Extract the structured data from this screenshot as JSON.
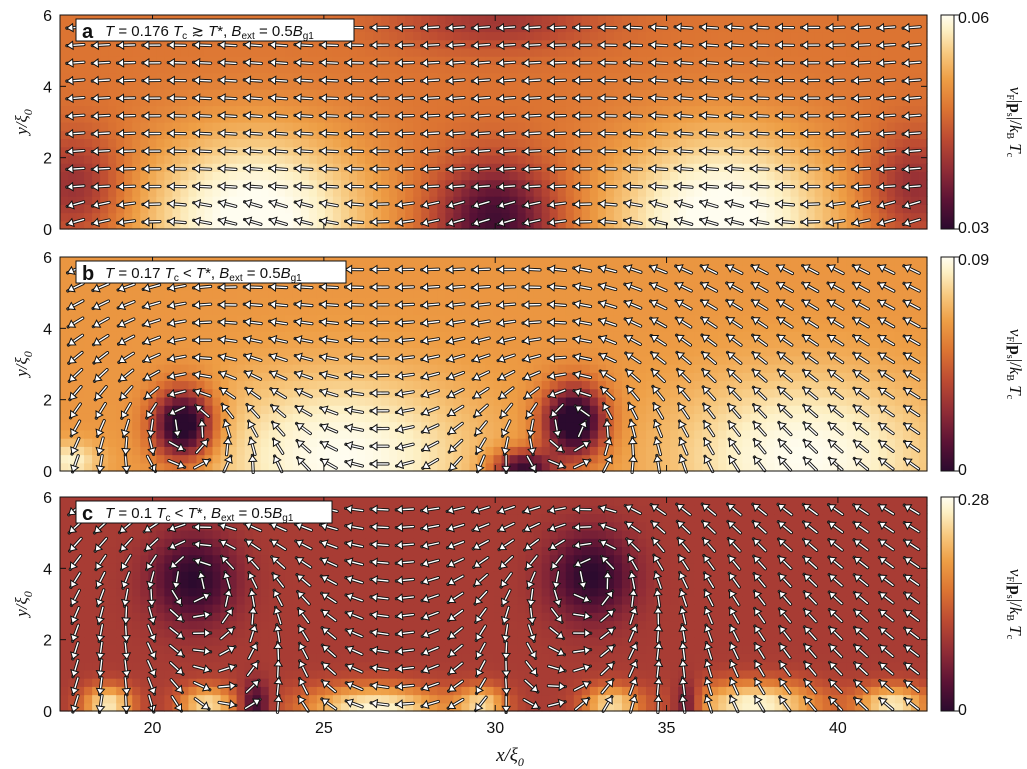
{
  "chart_data": [
    {
      "panel": "a",
      "type": "heatmap",
      "annotation": "T = 0.176 T_c ≳ T*, B_ext = 0.5 B_g1",
      "xlabel": "x/ξ0",
      "ylabel": "y/ξ0",
      "xlim": [
        17.3,
        42.6
      ],
      "ylim": [
        0,
        6
      ],
      "x_ticks": [
        "20",
        "25",
        "30",
        "35",
        "40"
      ],
      "y_ticks": [
        "0",
        "2",
        "4",
        "6"
      ],
      "colorbar": {
        "min_label": "0.03",
        "max_label": "0.06",
        "min": 0.03,
        "max": 0.06,
        "label": "v_F|p_s|/k_B T_c"
      },
      "field": {
        "base": 0.5,
        "blobs": [
          {
            "x": 23.0,
            "y": 0.3,
            "sx": 3.2,
            "sy": 2.4,
            "amp": 0.55
          },
          {
            "x": 36.6,
            "y": 0.3,
            "sx": 3.2,
            "sy": 2.4,
            "amp": 0.55
          },
          {
            "x": 30.0,
            "y": 0.3,
            "sx": 1.8,
            "sy": 1.6,
            "amp": -0.45
          },
          {
            "x": 17.8,
            "y": 1.2,
            "sx": 1.4,
            "sy": 1.5,
            "amp": -0.25
          },
          {
            "x": 42.2,
            "y": 1.2,
            "sx": 1.4,
            "sy": 1.5,
            "amp": -0.25
          },
          {
            "x": 30.0,
            "y": 5.8,
            "sx": 3.0,
            "sy": 0.8,
            "amp": -0.2
          }
        ]
      },
      "vectors": {
        "mode": "flow",
        "vortices": []
      }
    },
    {
      "panel": "b",
      "type": "heatmap",
      "annotation": "T = 0.17 T_c < T*, B_ext = 0.5 B_g1",
      "xlabel": "x/ξ0",
      "ylabel": "y/ξ0",
      "xlim": [
        17.3,
        42.6
      ],
      "ylim": [
        0,
        6
      ],
      "x_ticks": [
        "20",
        "25",
        "30",
        "35",
        "40"
      ],
      "y_ticks": [
        "0",
        "2",
        "4",
        "6"
      ],
      "colorbar": {
        "min_label": "0",
        "max_label": "0.09",
        "min": 0,
        "max": 0.09,
        "label": "v_F|p_s|/k_B T_c"
      },
      "field": {
        "base": 0.6,
        "blobs": [
          {
            "x": 25.5,
            "y": 0.4,
            "sx": 3.6,
            "sy": 2.2,
            "amp": 0.4
          },
          {
            "x": 39.0,
            "y": 0.4,
            "sx": 3.6,
            "sy": 2.2,
            "amp": 0.4
          },
          {
            "x": 20.9,
            "y": 1.3,
            "sx": 0.9,
            "sy": 1.0,
            "amp": -0.75
          },
          {
            "x": 32.3,
            "y": 1.4,
            "sx": 0.9,
            "sy": 1.0,
            "amp": -0.75
          },
          {
            "x": 30.8,
            "y": 0.1,
            "sx": 0.9,
            "sy": 0.5,
            "amp": -0.6
          },
          {
            "x": 17.6,
            "y": 0.3,
            "sx": 0.8,
            "sy": 0.5,
            "amp": 0.3
          }
        ]
      },
      "vectors": {
        "mode": "vortex",
        "vortices": [
          {
            "x": 20.9,
            "y": 1.3
          },
          {
            "x": 32.3,
            "y": 1.4
          }
        ]
      }
    },
    {
      "panel": "c",
      "type": "heatmap",
      "annotation": "T = 0.1 T_c < T*, B_ext = 0.5 B_g1",
      "xlabel": "x/ξ0",
      "ylabel": "y/ξ0",
      "xlim": [
        17.3,
        42.6
      ],
      "ylim": [
        0,
        6
      ],
      "x_ticks": [
        "20",
        "25",
        "30",
        "35",
        "40"
      ],
      "y_ticks": [
        "0",
        "2",
        "4",
        "6"
      ],
      "colorbar": {
        "min_label": "0",
        "max_label": "0.28",
        "min": 0,
        "max": 0.28,
        "label": "v_F|p_s|/k_B T_c"
      },
      "field": {
        "base": 0.32,
        "blobs": [
          {
            "x": 21.2,
            "y": 3.7,
            "sx": 1.2,
            "sy": 1.2,
            "amp": -0.32
          },
          {
            "x": 32.8,
            "y": 3.8,
            "sx": 1.2,
            "sy": 1.2,
            "amp": -0.32
          },
          {
            "x": 18.7,
            "y": 0.2,
            "sx": 0.7,
            "sy": 0.5,
            "amp": 0.55
          },
          {
            "x": 21.6,
            "y": 0.2,
            "sx": 0.8,
            "sy": 0.5,
            "amp": 0.5
          },
          {
            "x": 26.5,
            "y": 0.1,
            "sx": 2.0,
            "sy": 0.6,
            "amp": 0.6
          },
          {
            "x": 29.6,
            "y": 0.2,
            "sx": 0.7,
            "sy": 0.5,
            "amp": 0.45
          },
          {
            "x": 33.4,
            "y": 0.2,
            "sx": 0.8,
            "sy": 0.5,
            "amp": 0.5
          },
          {
            "x": 37.6,
            "y": 0.2,
            "sx": 1.8,
            "sy": 0.6,
            "amp": 0.6
          },
          {
            "x": 41.6,
            "y": 0.2,
            "sx": 1.0,
            "sy": 0.5,
            "amp": 0.55
          },
          {
            "x": 23.0,
            "y": 0.2,
            "sx": 0.4,
            "sy": 0.6,
            "amp": -0.3
          },
          {
            "x": 35.6,
            "y": 0.2,
            "sx": 0.4,
            "sy": 0.6,
            "amp": -0.3
          }
        ]
      },
      "vectors": {
        "mode": "vortex",
        "vortices": [
          {
            "x": 21.2,
            "y": 3.7
          },
          {
            "x": 32.8,
            "y": 3.8
          }
        ]
      }
    }
  ],
  "shared_xlabel": "x/ξ0",
  "colormap": [
    "#2b0a2e",
    "#5a1235",
    "#8e2b36",
    "#bc4a32",
    "#dc7432",
    "#ee9e45",
    "#f7c87e",
    "#fdf0c4",
    "#fffdf0"
  ]
}
